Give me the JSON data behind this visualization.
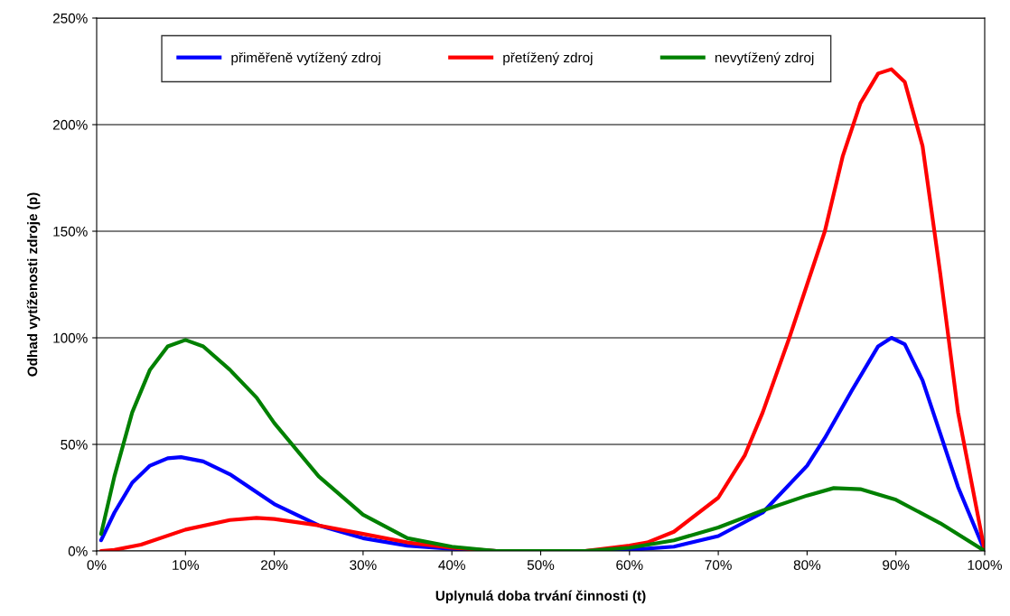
{
  "chart_data": {
    "type": "line",
    "xlabel": "Uplynulá doba trvání činnosti (t)",
    "ylabel": "Odhad vytíženosti zdroje (p)",
    "xlim": [
      0,
      100
    ],
    "ylim": [
      0,
      250
    ],
    "xticks": [
      {
        "value": 0,
        "label": "0%"
      },
      {
        "value": 10,
        "label": "10%"
      },
      {
        "value": 20,
        "label": "20%"
      },
      {
        "value": 30,
        "label": "30%"
      },
      {
        "value": 40,
        "label": "40%"
      },
      {
        "value": 50,
        "label": "50%"
      },
      {
        "value": 60,
        "label": "60%"
      },
      {
        "value": 70,
        "label": "70%"
      },
      {
        "value": 80,
        "label": "80%"
      },
      {
        "value": 90,
        "label": "90%"
      },
      {
        "value": 100,
        "label": "100%"
      }
    ],
    "yticks": [
      {
        "value": 0,
        "label": "0%"
      },
      {
        "value": 50,
        "label": "50%"
      },
      {
        "value": 100,
        "label": "100%"
      },
      {
        "value": 150,
        "label": "150%"
      },
      {
        "value": 200,
        "label": "200%"
      },
      {
        "value": 250,
        "label": "250%"
      }
    ],
    "grid": "y",
    "legend": "top",
    "marker": "none",
    "line_style": "solid",
    "series": [
      {
        "name": "přiměřeně vytížený zdroj",
        "color": "#0000ff",
        "x": [
          0.5,
          2,
          4,
          6,
          8,
          9.5,
          12,
          15,
          20,
          25,
          30,
          35,
          40,
          45,
          50,
          55,
          60,
          65,
          70,
          75,
          80,
          82,
          85,
          88,
          89.5,
          91,
          93,
          95,
          97,
          100
        ],
        "values": [
          5,
          18,
          32,
          40,
          43.5,
          44,
          42,
          36,
          22,
          12,
          6,
          2.5,
          1,
          0,
          0,
          0,
          0.5,
          2,
          7,
          18,
          40,
          53,
          75,
          96,
          100,
          97,
          80,
          55,
          30,
          0
        ]
      },
      {
        "name": "přetížený zdroj",
        "color": "#ff0000",
        "x": [
          0.5,
          2,
          5,
          10,
          15,
          18,
          20,
          25,
          30,
          35,
          40,
          45,
          50,
          55,
          60,
          62,
          65,
          70,
          73,
          75,
          78,
          80,
          82,
          84,
          86,
          88,
          89.5,
          91,
          93,
          95,
          97,
          100
        ],
        "values": [
          0,
          0.5,
          3,
          10,
          14.5,
          15.5,
          15,
          12,
          8,
          4,
          1.5,
          0,
          0,
          0,
          2.5,
          4,
          9,
          25,
          45,
          65,
          100,
          125,
          150,
          185,
          210,
          224,
          226,
          220,
          190,
          130,
          65,
          0
        ]
      },
      {
        "name": "nevytížený zdroj",
        "color": "#008000",
        "x": [
          0.5,
          2,
          4,
          6,
          8,
          10,
          12,
          15,
          18,
          20,
          25,
          30,
          35,
          40,
          45,
          50,
          55,
          60,
          65,
          70,
          75,
          80,
          83,
          86,
          90,
          95,
          100
        ],
        "values": [
          8,
          35,
          65,
          85,
          96,
          99,
          96,
          85,
          72,
          60,
          35,
          17,
          6,
          2,
          0,
          0,
          0,
          1.5,
          5,
          11,
          19,
          26,
          29.5,
          29,
          24,
          13,
          0
        ]
      }
    ]
  }
}
